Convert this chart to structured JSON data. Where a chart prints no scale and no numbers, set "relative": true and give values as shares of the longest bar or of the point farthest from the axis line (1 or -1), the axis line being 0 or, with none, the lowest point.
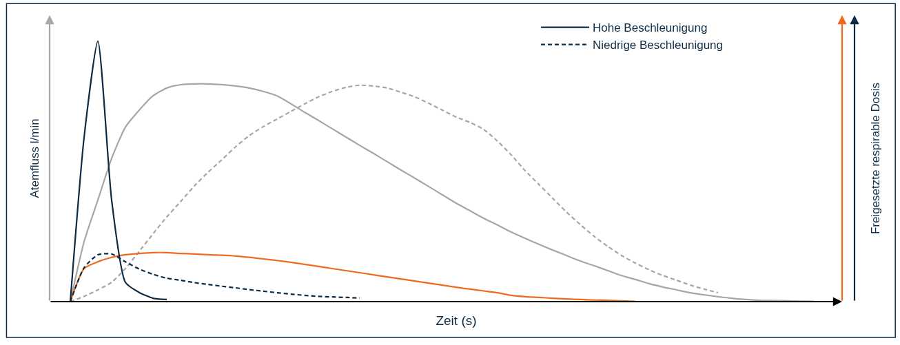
{
  "chart_data": {
    "type": "line",
    "relative": true,
    "xlabel": "Zeit (s)",
    "ylabel": "Atemfluss l/min",
    "y2label": "Freigesetzte respirable Dosis",
    "categories": [
      null,
      null,
      null,
      null,
      null,
      null,
      null,
      null,
      null,
      null,
      null,
      null,
      null,
      null,
      null,
      null,
      null,
      null,
      null,
      null,
      null,
      null,
      null,
      null,
      null,
      null,
      null,
      null,
      null,
      null,
      null,
      null,
      null,
      null,
      null,
      null,
      null,
      null,
      null,
      null,
      null,
      null,
      null,
      null,
      null,
      null,
      null,
      null,
      null,
      null,
      null,
      null,
      null,
      null,
      null,
      null
    ],
    "series": [
      {
        "color": "#a6a6a6",
        "line_style": "solid",
        "values": [
          0,
          0.23,
          0.39,
          0.55,
          0.67,
          0.735,
          0.79,
          0.82,
          0.833,
          0.836,
          0.836,
          0.833,
          0.828,
          0.82,
          0.807,
          0.79,
          0.76,
          0.727,
          0.696,
          0.664,
          0.632,
          0.6,
          0.569,
          0.537,
          0.505,
          0.474,
          0.442,
          0.41,
          0.378,
          0.349,
          0.32,
          0.294,
          0.267,
          0.243,
          0.22,
          0.198,
          0.177,
          0.156,
          0.138,
          0.119,
          0.1,
          0.085,
          0.069,
          0.056,
          0.045,
          0.034,
          0.026,
          0.019,
          0.013,
          0.008,
          0.005,
          0.004,
          0.003,
          0.002,
          0.001,
          null
        ]
      },
      {
        "color": "#a6a6a6",
        "line_style": "dashed",
        "values": [
          0,
          0.02,
          0.045,
          0.074,
          0.127,
          0.193,
          0.26,
          0.325,
          0.384,
          0.444,
          0.497,
          0.545,
          0.595,
          0.638,
          0.672,
          0.701,
          0.73,
          0.759,
          0.786,
          0.807,
          0.823,
          0.831,
          0.828,
          0.82,
          0.804,
          0.786,
          0.762,
          0.735,
          0.709,
          0.688,
          0.661,
          0.616,
          0.563,
          0.503,
          0.45,
          0.397,
          0.344,
          0.296,
          0.251,
          0.212,
          0.177,
          0.148,
          0.122,
          0.1,
          0.082,
          0.063,
          0.048,
          0.034,
          null,
          null,
          null,
          null,
          null,
          null,
          null,
          null
        ]
      },
      {
        "color": "#ee6a1f",
        "line_style": "solid",
        "values": [
          0,
          0.127,
          0.153,
          0.17,
          0.18,
          0.185,
          0.188,
          0.188,
          0.185,
          0.183,
          0.18,
          0.178,
          0.175,
          0.17,
          0.164,
          0.158,
          0.151,
          0.143,
          0.135,
          0.127,
          0.119,
          0.111,
          0.103,
          0.095,
          0.087,
          0.079,
          0.071,
          0.063,
          0.055,
          0.048,
          0.041,
          0.034,
          0.024,
          0.019,
          0.016,
          0.013,
          0.01,
          0.008,
          0.006,
          0.005,
          0.003,
          0.001,
          null,
          null,
          null,
          null,
          null,
          null,
          null,
          null,
          null,
          null,
          null,
          null,
          null,
          null
        ]
      },
      {
        "name": "Hohe Beschleunigung",
        "color": "#0d2b45",
        "line_style": "solid",
        "values": [
          0,
          0.63,
          1.0,
          0.39,
          0.074,
          0.035,
          0.013,
          0.008,
          null,
          null,
          null,
          null,
          null,
          null,
          null,
          null,
          null,
          null,
          null,
          null,
          null,
          null,
          null,
          null,
          null,
          null,
          null,
          null,
          null,
          null,
          null,
          null,
          null,
          null,
          null,
          null,
          null,
          null,
          null,
          null,
          null,
          null,
          null,
          null,
          null,
          null,
          null,
          null,
          null,
          null,
          null,
          null,
          null,
          null,
          null,
          null
        ]
      },
      {
        "name": "Niedrige Beschleunigung",
        "color": "#0d2b45",
        "line_style": "dashed",
        "values": [
          0,
          0.13,
          0.18,
          0.183,
          0.153,
          0.125,
          0.105,
          0.09,
          0.082,
          0.073,
          0.066,
          0.059,
          0.053,
          0.046,
          0.04,
          0.034,
          0.029,
          0.024,
          0.02,
          0.018,
          0.016,
          0.014,
          null,
          null,
          null,
          null,
          null,
          null,
          null,
          null,
          null,
          null,
          null,
          null,
          null,
          null,
          null,
          null,
          null,
          null,
          null,
          null,
          null,
          null,
          null,
          null,
          null,
          null,
          null,
          null,
          null,
          null,
          null,
          null,
          null,
          null
        ]
      }
    ],
    "legend": "top right",
    "marker": "none"
  }
}
